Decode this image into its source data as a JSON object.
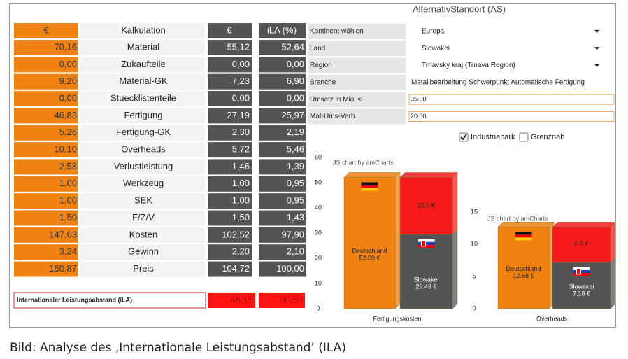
{
  "form": {
    "title": "AlternativStandort (AS)",
    "fields": [
      {
        "label": "Kontinent wählen",
        "value": "Europa",
        "kind": "select"
      },
      {
        "label": "Land",
        "value": "Slowakei",
        "kind": "select"
      },
      {
        "label": "Region",
        "value": "Trnavský kraj (Trnava Region)",
        "kind": "select"
      },
      {
        "label": "Branche",
        "value": "Metallbearbeitung Schwerpunkt Automatische Fertigung",
        "kind": "text"
      },
      {
        "label": "Umsatz in Mio. €",
        "value": "35.00",
        "kind": "input"
      },
      {
        "label": "Mat-Ums-Verh.",
        "value": "20.00",
        "kind": "input"
      }
    ],
    "checkboxes": [
      {
        "label": "Industriepark",
        "checked": true
      },
      {
        "label": "Grenznah",
        "checked": false
      }
    ]
  },
  "table": {
    "header": [
      "€",
      "Kalkulation",
      "€",
      "iLA (%)"
    ],
    "rows": [
      [
        "70,16",
        "Material",
        "55,12",
        "52,64"
      ],
      [
        "0,00",
        "Zukaufteile",
        "0,00",
        "0,00"
      ],
      [
        "9,20",
        "Material-GK",
        "7,23",
        "6,90"
      ],
      [
        "0,00",
        "Stuecklistenteile",
        "0,00",
        "0,00"
      ],
      [
        "46,83",
        "Fertigung",
        "27,19",
        "25,97"
      ],
      [
        "5,26",
        "Fertigung-GK",
        "2,30",
        "2,19"
      ],
      [
        "10,10",
        "Overheads",
        "5,72",
        "5,46"
      ],
      [
        "2,58",
        "Verlustleistung",
        "1,46",
        "1,39"
      ],
      [
        "1,00",
        "Werkzeug",
        "1,00",
        "0,95"
      ],
      [
        "1,00",
        "SEK",
        "1,00",
        "0,95"
      ],
      [
        "1,50",
        "F/Z/V",
        "1,50",
        "1,43"
      ],
      [
        "147,63",
        "Kosten",
        "102,52",
        "97,90"
      ],
      [
        "3,24",
        "Gewinn",
        "2,20",
        "2,10"
      ],
      [
        "150,87",
        "Preis",
        "104,72",
        "100,00"
      ]
    ],
    "footer": [
      "Internationaler Leistungsabstand (iLA)",
      "46,15",
      "30,59"
    ]
  },
  "charts": [
    {
      "type": "bar",
      "stacked": true,
      "credit": "JS chart by amCharts",
      "xlabel": "Fertigungskosten",
      "ylim": [
        0,
        60
      ],
      "yticks": [
        0,
        10,
        20,
        30,
        40,
        50,
        60
      ],
      "bars": [
        {
          "label": "Deutschland",
          "flag": "de",
          "segments": [
            {
              "value": 52.09,
              "label": "52.09 €",
              "color": "#ef8210"
            }
          ]
        },
        {
          "label": "Slowakei",
          "flag": "sk",
          "segments": [
            {
              "value": 29.49,
              "label": "29.49 €",
              "color": "#545454"
            },
            {
              "value": 22.6,
              "label": "22.6 €",
              "color": "#f51b1b"
            }
          ]
        }
      ]
    },
    {
      "type": "bar",
      "stacked": true,
      "credit": "JS chart by amCharts",
      "xlabel": "Overheads",
      "ylim": [
        0,
        15
      ],
      "yticks": [
        0,
        5,
        10,
        15
      ],
      "bars": [
        {
          "label": "Deutschland",
          "flag": "de",
          "segments": [
            {
              "value": 12.68,
              "label": "12.68 €",
              "color": "#ef8210"
            }
          ]
        },
        {
          "label": "Slowakei",
          "flag": "sk",
          "segments": [
            {
              "value": 7.18,
              "label": "7.18 €",
              "color": "#545454"
            },
            {
              "value": 5.5,
              "label": "5.5 €",
              "color": "#f51b1b"
            }
          ]
        }
      ]
    }
  ],
  "caption": "Bild: Analyse des ‚Internationale Leistungsabstand’ (ILA)"
}
